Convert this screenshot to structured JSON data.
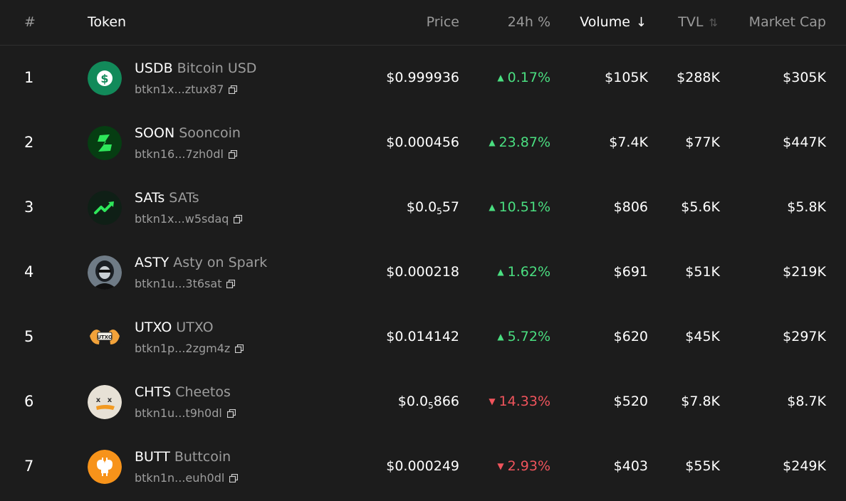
{
  "header": {
    "rank": "#",
    "token": "Token",
    "price": "Price",
    "change": "24h %",
    "volume": "Volume",
    "volume_sort": "↓",
    "tvl": "TVL",
    "tvl_sort": "⇅",
    "mcap": "Market Cap"
  },
  "colors": {
    "up": "#4ade80",
    "down": "#f0545c",
    "muted": "#9d9d9d"
  },
  "rows": [
    {
      "rank": "1",
      "ticker": "USDB",
      "name": "Bitcoin USD",
      "addr": "btkn1x...ztux87",
      "price_pre": "$0.999936",
      "price_sub": "",
      "price_post": "",
      "change": "0.17%",
      "dir": "up",
      "volume": "$105K",
      "tvl": "$288K",
      "mcap": "$305K",
      "logo": "dollar-icon"
    },
    {
      "rank": "2",
      "ticker": "SOON",
      "name": "Sooncoin",
      "addr": "btkn16...7zh0dl",
      "price_pre": "$0.000456",
      "price_sub": "",
      "price_post": "",
      "change": "23.87%",
      "dir": "up",
      "volume": "$7.4K",
      "tvl": "$77K",
      "mcap": "$447K",
      "logo": "lightning-s-icon"
    },
    {
      "rank": "3",
      "ticker": "SATs",
      "name": "SATs",
      "addr": "btkn1x...w5sdaq",
      "price_pre": "$0.0",
      "price_sub": "5",
      "price_post": "57",
      "change": "10.51%",
      "dir": "up",
      "volume": "$806",
      "tvl": "$5.6K",
      "mcap": "$5.8K",
      "logo": "trend-up-icon"
    },
    {
      "rank": "4",
      "ticker": "ASTY",
      "name": "Asty on Spark",
      "addr": "btkn1u...3t6sat",
      "price_pre": "$0.000218",
      "price_sub": "",
      "price_post": "",
      "change": "1.62%",
      "dir": "up",
      "volume": "$691",
      "tvl": "$51K",
      "mcap": "$219K",
      "logo": "avatar-portrait-icon"
    },
    {
      "rank": "5",
      "ticker": "UTXO",
      "name": "UTXO",
      "addr": "btkn1p...2zgm4z",
      "price_pre": "$0.014142",
      "price_sub": "",
      "price_post": "",
      "change": "5.72%",
      "dir": "up",
      "volume": "$620",
      "tvl": "$45K",
      "mcap": "$297K",
      "logo": "utxo-hands-icon"
    },
    {
      "rank": "6",
      "ticker": "CHTS",
      "name": "Cheetos",
      "addr": "btkn1u...t9h0dl",
      "price_pre": "$0.0",
      "price_sub": "5",
      "price_post": "866",
      "change": "14.33%",
      "dir": "down",
      "volume": "$520",
      "tvl": "$7.8K",
      "mcap": "$8.7K",
      "logo": "cheeto-face-icon"
    },
    {
      "rank": "7",
      "ticker": "BUTT",
      "name": "Buttcoin",
      "addr": "btkn1n...euh0dl",
      "price_pre": "$0.000249",
      "price_sub": "",
      "price_post": "",
      "change": "2.93%",
      "dir": "down",
      "volume": "$403",
      "tvl": "$55K",
      "mcap": "$249K",
      "logo": "buttcoin-icon"
    }
  ]
}
